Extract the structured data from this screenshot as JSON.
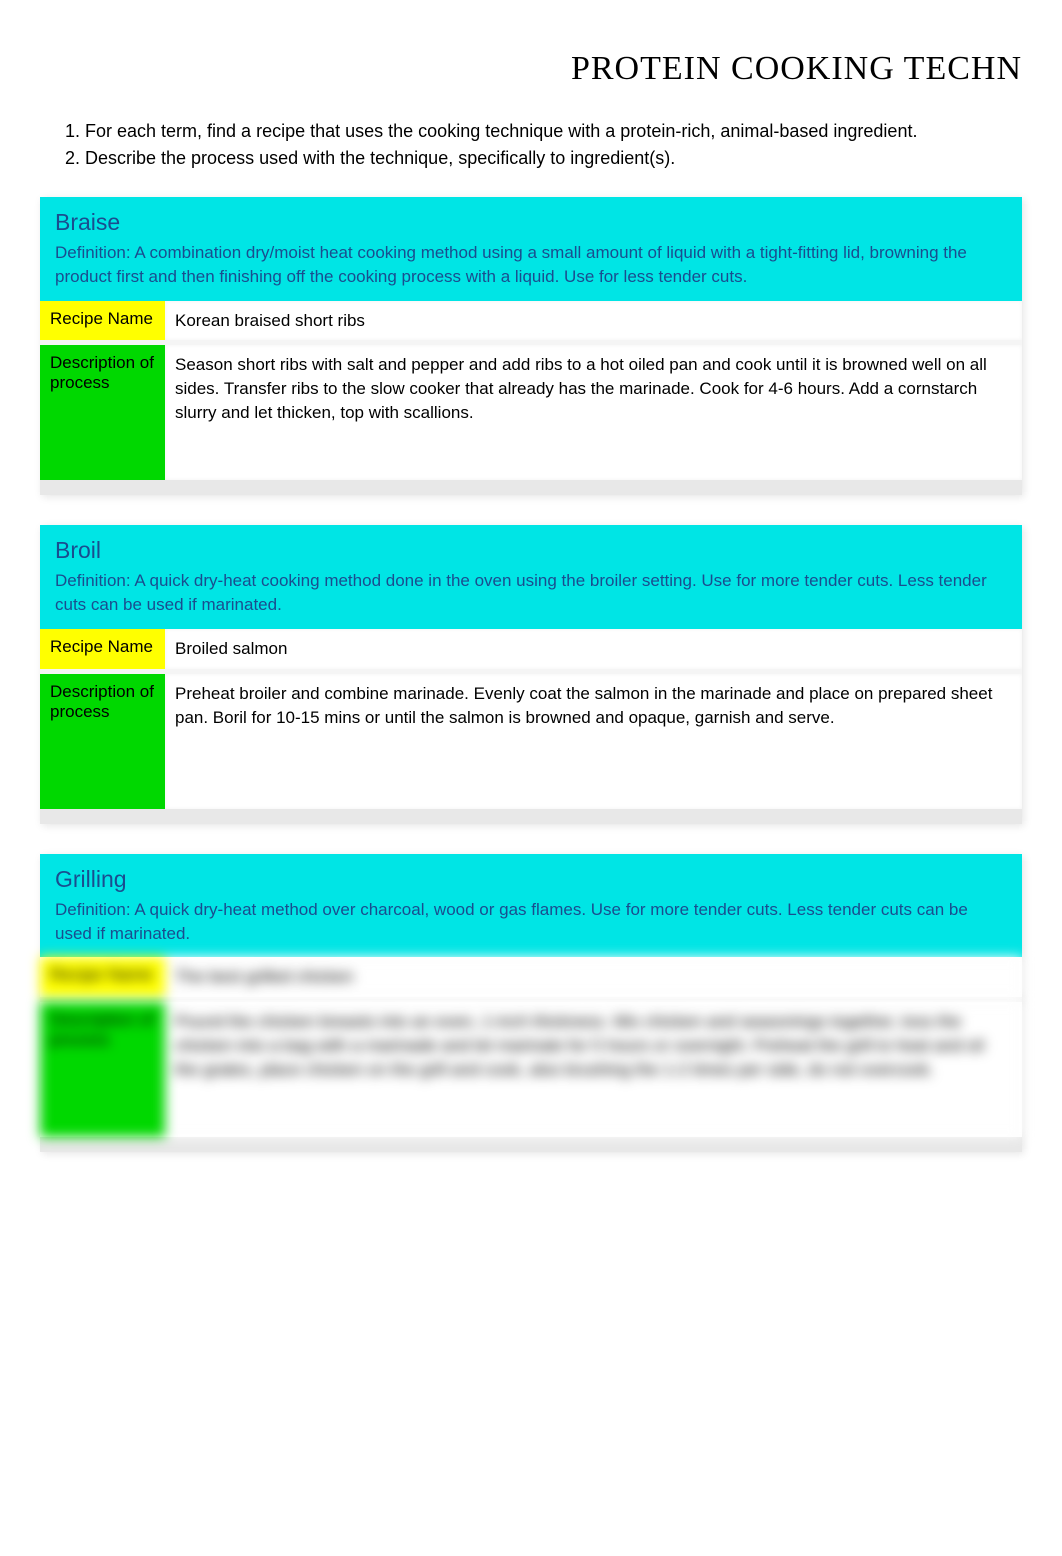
{
  "title": "PROTEIN COOKING TECHN",
  "instructions": [
    "For each term, find a recipe  that uses the   cooking technique  with a protein-rich, animal-based ingredient.",
    "Describe the process  used with the technique,    specifically to ingredient(s)."
  ],
  "labels": {
    "recipe_name": "Recipe Name",
    "description": "Description of process"
  },
  "colors": {
    "header_bg": "#00e5e5",
    "recipe_label_bg": "#ffff00",
    "process_label_bg": "#00d800",
    "technique_title_color": "#1a4d8f",
    "body_bg": "#ffffff"
  },
  "techniques": [
    {
      "name": "Braise",
      "definition": "Definition: A combination dry/moist heat cooking method using a small amount of liquid with a tight-fitting lid, browning the product first and then finishing off the cooking process with a liquid.   Use for less tender cuts.",
      "recipe_name": "Korean braised short ribs",
      "process": "Season short ribs with salt and pepper and add ribs to a hot oiled pan and cook until it is browned well on all sides. Transfer ribs to the slow cooker that already has the marinade. Cook for 4-6 hours. Add a cornstarch slurry and let thicken, top with scallions.",
      "blurred": false
    },
    {
      "name": "Broil",
      "definition": "Definition:  A quick dry-heat cooking method done in the oven using the broiler setting. Use for more tender cuts. Less tender cuts can be used if marinated.",
      "recipe_name": "Broiled salmon",
      "process": "Preheat broiler and combine marinade. Evenly coat the salmon in the marinade and place on prepared sheet pan. Boril for 10-15 mins or until the salmon is browned and opaque, garnish and serve.",
      "blurred": false
    },
    {
      "name": "Grilling",
      "definition": "Definition:  A quick dry-heat method over charcoal, wood or gas flames. Use for more tender cuts. Less tender cuts can be used if marinated.",
      "recipe_name": "The best grilled chicken",
      "process": "Pound the chicken breasts into an even, 1-inch thickness. Mix chicken and seasonings together, toss the chicken into a bag with a marinade and let marinate for 5 hours or overnight. Preheat the grill to heat and oil the grates, place chicken on the grill and cook, also brushing the 1-2 times per side, do not overcook.",
      "blurred": true
    }
  ]
}
